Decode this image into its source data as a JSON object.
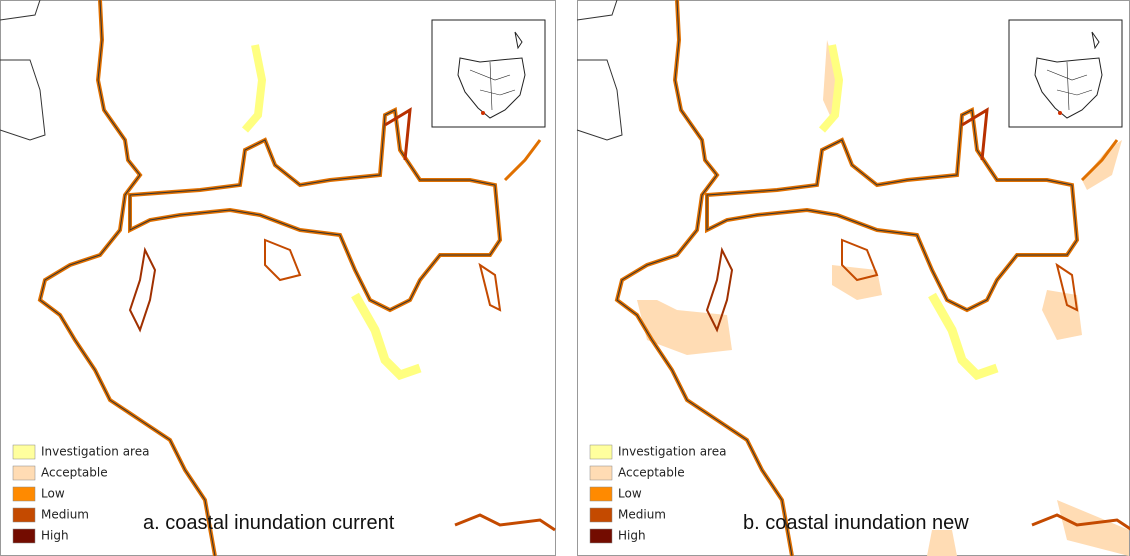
{
  "panels": [
    {
      "caption": "a. coastal inundation current",
      "legend": [
        {
          "label": "Investigation area",
          "color": "#ffff9e"
        },
        {
          "label": "Acceptable",
          "color": "#ffdcb4"
        },
        {
          "label": "Low",
          "color": "#ff8a00"
        },
        {
          "label": "Medium",
          "color": "#c44a00"
        },
        {
          "label": "High",
          "color": "#730c00"
        }
      ]
    },
    {
      "caption": "b. coastal inundation new",
      "legend": [
        {
          "label": "Investigation area",
          "color": "#ffff9e"
        },
        {
          "label": "Acceptable",
          "color": "#ffdcb4"
        },
        {
          "label": "Low",
          "color": "#ff8a00"
        },
        {
          "label": "Medium",
          "color": "#c44a00"
        },
        {
          "label": "High",
          "color": "#730c00"
        }
      ]
    }
  ]
}
